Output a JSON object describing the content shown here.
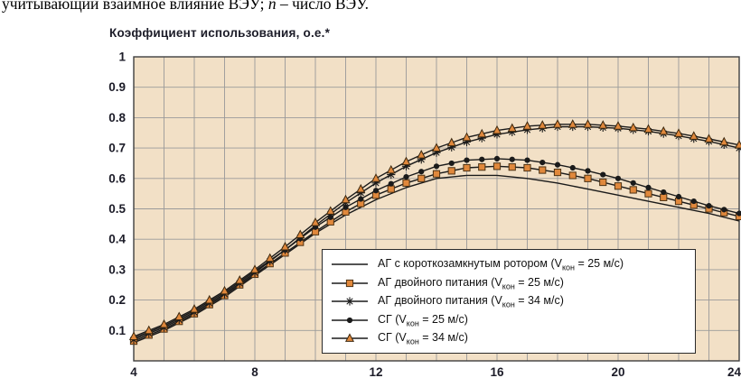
{
  "page": {
    "caption": {
      "pre": "учитывающий взаимное влияние ВЭУ; ",
      "em": "n",
      "post": " – число ВЭУ."
    }
  },
  "chart_data": {
    "type": "line",
    "title": "Коэффициент использования, о.е.*",
    "xlabel": "",
    "ylabel": "Коэффициент использования, о.е.*",
    "xlim": [
      4,
      24
    ],
    "ylim": [
      0,
      1
    ],
    "x_ticks": [
      4,
      8,
      12,
      16,
      20,
      24
    ],
    "y_ticks": [
      0.1,
      0.2,
      0.3,
      0.4,
      0.5,
      0.6,
      0.7,
      0.8,
      0.9,
      1
    ],
    "grid": {
      "x_step": 1,
      "y_step": 0.1,
      "on": true
    },
    "legend_position": "lower right",
    "x": [
      4,
      5,
      6,
      7,
      8,
      9,
      10,
      11,
      12,
      13,
      14,
      15,
      16,
      17,
      18,
      19,
      20,
      21,
      22,
      23,
      24
    ],
    "series": [
      {
        "id": "ag_kz_25",
        "name": "АГ с короткозамкнутым ротором (Vкон = 25 м/с)",
        "marker": "none",
        "values": [
          0.06,
          0.1,
          0.15,
          0.21,
          0.28,
          0.35,
          0.42,
          0.48,
          0.53,
          0.57,
          0.6,
          0.61,
          0.61,
          0.6,
          0.585,
          0.565,
          0.545,
          0.525,
          0.505,
          0.485,
          0.46
        ]
      },
      {
        "id": "ag_dp_25",
        "name": "АГ двойного питания (Vкон = 25 м/с)",
        "marker": "square",
        "values": [
          0.065,
          0.105,
          0.155,
          0.215,
          0.285,
          0.355,
          0.425,
          0.49,
          0.545,
          0.585,
          0.615,
          0.635,
          0.64,
          0.635,
          0.62,
          0.6,
          0.575,
          0.55,
          0.525,
          0.5,
          0.475
        ]
      },
      {
        "id": "ag_dp_34",
        "name": "АГ двойного питания (Vкон = 34 м/с)",
        "marker": "asterisk",
        "values": [
          0.07,
          0.11,
          0.16,
          0.22,
          0.29,
          0.365,
          0.445,
          0.52,
          0.585,
          0.64,
          0.685,
          0.72,
          0.745,
          0.76,
          0.77,
          0.77,
          0.765,
          0.755,
          0.74,
          0.722,
          0.7
        ]
      },
      {
        "id": "sg_25",
        "name": "СГ (Vкон = 25 м/с)",
        "marker": "circle",
        "values": [
          0.075,
          0.115,
          0.165,
          0.225,
          0.295,
          0.365,
          0.44,
          0.505,
          0.56,
          0.605,
          0.64,
          0.66,
          0.665,
          0.66,
          0.645,
          0.625,
          0.6,
          0.57,
          0.54,
          0.51,
          0.485
        ]
      },
      {
        "id": "sg_34",
        "name": "СГ (Vкон = 34 м/с)",
        "marker": "triangle",
        "values": [
          0.08,
          0.12,
          0.17,
          0.23,
          0.3,
          0.375,
          0.455,
          0.53,
          0.6,
          0.655,
          0.7,
          0.735,
          0.758,
          0.772,
          0.778,
          0.778,
          0.772,
          0.762,
          0.748,
          0.73,
          0.71
        ]
      }
    ],
    "colors": {
      "plot_bg": "#f2e0c6",
      "grid": "#9a9a9a",
      "line": "#1a1a1a",
      "orange": "#e0883c",
      "label": "#1c1c28"
    }
  },
  "legend": {
    "items": [
      {
        "marker": "none",
        "pre": "АГ с короткозамкнутым ротором (V",
        "sub": "кон",
        "post": " = 25 м/с)"
      },
      {
        "marker": "square",
        "pre": "АГ двойного питания (V",
        "sub": "кон",
        "post": " = 25 м/с)"
      },
      {
        "marker": "asterisk",
        "pre": "АГ двойного питания (V",
        "sub": "кон",
        "post": " = 34 м/с)"
      },
      {
        "marker": "circle",
        "pre": "СГ (V",
        "sub": "кон",
        "post": " = 25 м/с)"
      },
      {
        "marker": "triangle",
        "pre": "СГ (V",
        "sub": "кон",
        "post": " = 34 м/с)"
      }
    ]
  }
}
